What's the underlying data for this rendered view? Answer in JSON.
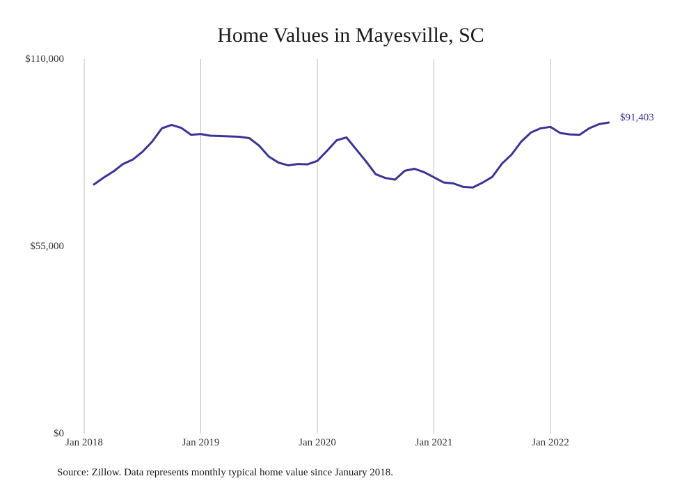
{
  "chart_data": {
    "type": "line",
    "title": "Home Values in Mayesville, SC",
    "xlabel": "",
    "ylabel": "",
    "ylim": [
      0,
      110000
    ],
    "y_ticks": [
      "$0",
      "$55,000",
      "$110,000"
    ],
    "y_tick_values": [
      0,
      55000,
      110000
    ],
    "x_ticks": [
      "Jan 2018",
      "Jan 2019",
      "Jan 2020",
      "Jan 2021",
      "Jan 2022"
    ],
    "x_tick_dates": [
      "2018-01",
      "2019-01",
      "2020-01",
      "2021-01",
      "2022-01"
    ],
    "grid": "vertical",
    "line_color": "#3b3398",
    "grid_color": "#bdbdbd",
    "end_label": "$91,403",
    "series": [
      {
        "x": [
          "2018-02",
          "2018-03",
          "2018-04",
          "2018-05",
          "2018-06",
          "2018-07",
          "2018-08",
          "2018-09",
          "2018-10",
          "2018-11",
          "2018-12",
          "2019-01",
          "2019-02",
          "2019-03",
          "2019-04",
          "2019-05",
          "2019-06",
          "2019-07",
          "2019-08",
          "2019-09",
          "2019-10",
          "2019-11",
          "2019-12",
          "2020-01",
          "2020-02",
          "2020-03",
          "2020-04",
          "2020-05",
          "2020-06",
          "2020-07",
          "2020-08",
          "2020-09",
          "2020-10",
          "2020-11",
          "2020-12",
          "2021-01",
          "2021-02",
          "2021-03",
          "2021-04",
          "2021-05",
          "2021-06",
          "2021-07",
          "2021-08",
          "2021-09",
          "2021-10",
          "2021-11",
          "2021-12",
          "2022-01",
          "2022-02",
          "2022-03",
          "2022-04",
          "2022-05",
          "2022-06",
          "2022-07"
        ],
        "values": [
          73200,
          75200,
          77000,
          79200,
          80500,
          82800,
          85800,
          89700,
          90700,
          89800,
          87800,
          88000,
          87500,
          87400,
          87300,
          87200,
          86800,
          84600,
          81400,
          79600,
          78800,
          79200,
          79100,
          80100,
          83100,
          86200,
          87000,
          83500,
          80000,
          76200,
          75100,
          74600,
          77200,
          77800,
          76800,
          75300,
          73800,
          73500,
          72500,
          72300,
          73700,
          75400,
          79300,
          82000,
          85800,
          88500,
          89700,
          90100,
          88300,
          87900,
          87800,
          89700,
          90900,
          91403
        ]
      }
    ],
    "source_note": "Source: Zillow. Data represents monthly typical home value since January 2018."
  }
}
